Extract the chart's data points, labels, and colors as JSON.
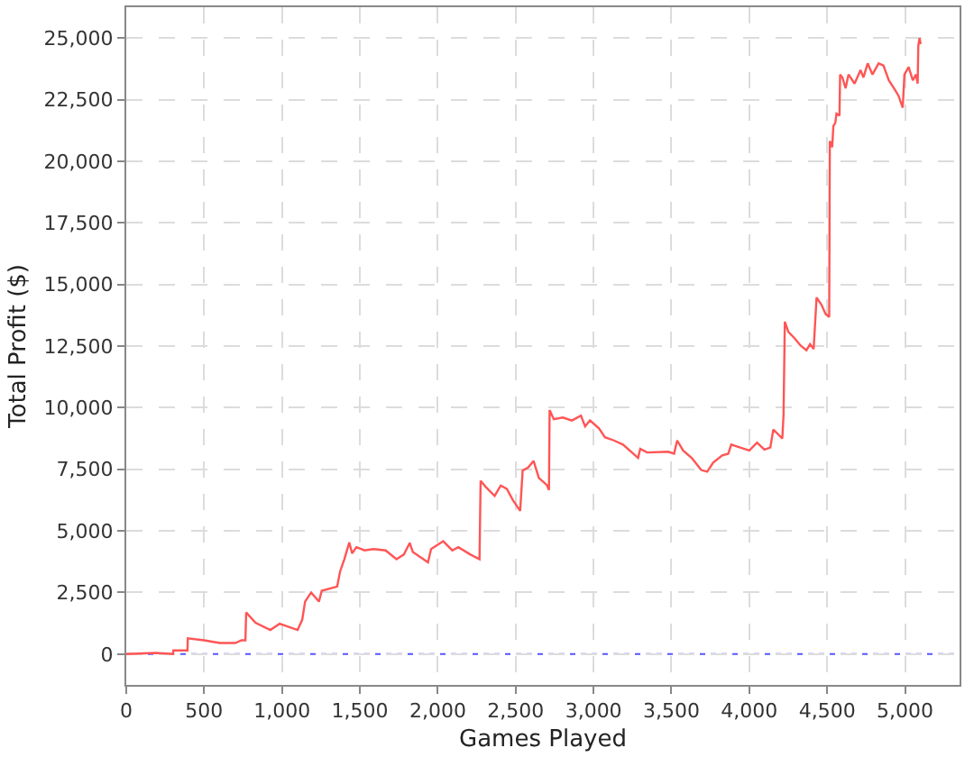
{
  "chart_data": {
    "type": "line",
    "xlabel": "Games Played",
    "ylabel": "Total Profit ($)",
    "x": [
      0,
      190,
      300,
      302,
      393,
      395,
      500,
      600,
      700,
      740,
      765,
      770,
      830,
      925,
      985,
      1100,
      1130,
      1148,
      1187,
      1237,
      1255,
      1354,
      1373,
      1400,
      1432,
      1450,
      1478,
      1530,
      1587,
      1665,
      1735,
      1782,
      1820,
      1840,
      1937,
      1957,
      2035,
      2093,
      2132,
      2210,
      2268,
      2275,
      2307,
      2365,
      2404,
      2443,
      2482,
      2529,
      2545,
      2580,
      2615,
      2649,
      2700,
      2714,
      2718,
      2745,
      2803,
      2861,
      2919,
      2946,
      2977,
      3035,
      3073,
      3131,
      3189,
      3247,
      3286,
      3300,
      3344,
      3479,
      3517,
      3537,
      3575,
      3633,
      3691,
      3730,
      3768,
      3826,
      3865,
      3884,
      3942,
      4000,
      4050,
      4097,
      4135,
      4154,
      4193,
      4212,
      4220,
      4228,
      4251,
      4290,
      4328,
      4367,
      4390,
      4413,
      4432,
      4463,
      4490,
      4513,
      4517,
      4532,
      4540,
      4552,
      4560,
      4579,
      4583,
      4598,
      4618,
      4637,
      4676,
      4714,
      4733,
      4760,
      4791,
      4830,
      4861,
      4896,
      4927,
      4958,
      4985,
      4996,
      5023,
      5050,
      5070,
      5081,
      5085,
      5093,
      5100
    ],
    "series": [
      {
        "color": "#ff5555",
        "values": [
          0,
          50,
          0,
          150,
          150,
          640,
          560,
          450,
          450,
          560,
          560,
          1690,
          1270,
          980,
          1230,
          980,
          1400,
          2130,
          2500,
          2130,
          2570,
          2740,
          3360,
          3850,
          4530,
          4090,
          4340,
          4210,
          4260,
          4210,
          3850,
          4040,
          4510,
          4140,
          3720,
          4260,
          4580,
          4210,
          4340,
          4040,
          3850,
          7030,
          6790,
          6420,
          6840,
          6710,
          6250,
          5810,
          7450,
          7570,
          7840,
          7150,
          6860,
          6660,
          9900,
          9530,
          9600,
          9480,
          9680,
          9240,
          9480,
          9160,
          8800,
          8670,
          8500,
          8180,
          7960,
          8330,
          8180,
          8210,
          8130,
          8670,
          8260,
          7940,
          7470,
          7400,
          7770,
          8060,
          8130,
          8500,
          8380,
          8260,
          8580,
          8300,
          8380,
          9110,
          8870,
          8750,
          9730,
          13490,
          13070,
          12820,
          12530,
          12330,
          12580,
          12380,
          14470,
          14180,
          13800,
          13680,
          20820,
          20570,
          21430,
          21560,
          21930,
          21850,
          23520,
          23400,
          22960,
          23520,
          23150,
          23700,
          23400,
          23970,
          23520,
          23970,
          23890,
          23280,
          22980,
          22660,
          22170,
          23520,
          23820,
          23280,
          23520,
          23150,
          24680,
          25000,
          24750
        ]
      }
    ],
    "xlim": [
      0,
      5350
    ],
    "ylim": [
      -1250,
      26250
    ],
    "xticks": [
      0,
      {
        "value": 500,
        "label": "500"
      },
      {
        "value": 1000,
        "label": "1,000"
      },
      {
        "value": 1500,
        "label": "1,500"
      },
      {
        "value": 2000,
        "label": "2,000"
      },
      {
        "value": 2500,
        "label": "2,500"
      },
      {
        "value": 3000,
        "label": "3,000"
      },
      {
        "value": 3500,
        "label": "3,500"
      },
      {
        "value": 4000,
        "label": "4,000"
      },
      {
        "value": 4500,
        "label": "4,500"
      },
      {
        "value": 5000,
        "label": "5,000"
      }
    ],
    "yticks": [
      0,
      {
        "value": 2500,
        "label": "2,500"
      },
      {
        "value": 5000,
        "label": "5,000"
      },
      {
        "value": 7500,
        "label": "7,500"
      },
      {
        "value": 10000,
        "label": "10,000"
      },
      {
        "value": 12500,
        "label": "12,500"
      },
      {
        "value": 15000,
        "label": "15,000"
      },
      {
        "value": 17500,
        "label": "17,500"
      },
      {
        "value": 20000,
        "label": "20,000"
      },
      {
        "value": 22500,
        "label": "22,500"
      },
      {
        "value": 25000,
        "label": "25,000"
      }
    ],
    "grid": true,
    "line_style": "solid",
    "ref_lines": [
      {
        "axis": "y",
        "value": 0,
        "color": "#5555ff",
        "line_style": "dotted"
      }
    ]
  }
}
